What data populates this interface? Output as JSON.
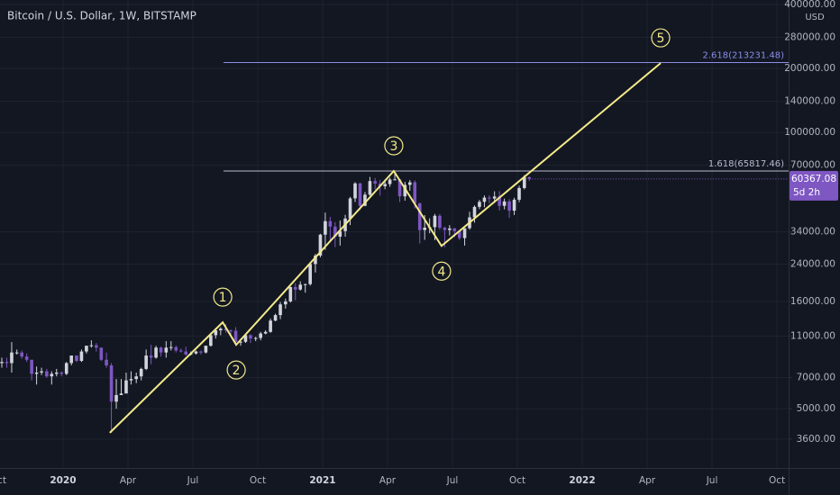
{
  "chart_data": {
    "type": "candlestick",
    "title": "Bitcoin / U.S. Dollar, 1W, BITSTAMP",
    "y_unit": "USD",
    "log_scale": true,
    "grid": true,
    "up_color": "#d1d4dc",
    "down_color": "#7e57c2",
    "xlim": [
      2019.757,
      2022.795
    ],
    "ylim": [
      2630,
      420000
    ],
    "xticks": [
      {
        "value": 2019.75,
        "label": "Oct"
      },
      2020,
      {
        "value": 2020.25,
        "label": "Apr"
      },
      {
        "value": 2020.5,
        "label": "Jul"
      },
      {
        "value": 2020.75,
        "label": "Oct"
      },
      2021,
      {
        "value": 2021.25,
        "label": "Apr"
      },
      {
        "value": 2021.5,
        "label": "Jul"
      },
      {
        "value": 2021.75,
        "label": "Oct"
      },
      2022,
      {
        "value": 2022.25,
        "label": "Apr"
      },
      {
        "value": 2022.5,
        "label": "Jul"
      },
      {
        "value": 2022.75,
        "label": "Oct"
      }
    ],
    "yticks": [
      {
        "value": 400000,
        "label": "400000.00"
      },
      {
        "value": 280000,
        "label": "280000.00"
      },
      {
        "value": 200000,
        "label": "200000.00"
      },
      {
        "value": 140000,
        "label": "140000.00"
      },
      {
        "value": 100000,
        "label": "100000.00"
      },
      {
        "value": 70000,
        "label": "70000.00"
      },
      {
        "value": 34000,
        "label": "34000.00"
      },
      {
        "value": 24000,
        "label": "24000.00"
      },
      {
        "value": 16000,
        "label": "16000.00"
      },
      {
        "value": 11000,
        "label": "11000.00"
      },
      {
        "value": 7000,
        "label": "7000.00"
      },
      {
        "value": 5000,
        "label": "5000.00"
      },
      {
        "value": 3600,
        "label": "3600.00"
      }
    ],
    "x": [
      2019.764,
      2019.783,
      2019.802,
      2019.822,
      2019.841,
      2019.86,
      2019.879,
      2019.898,
      2019.917,
      2019.937,
      2019.956,
      2019.975,
      2019.994,
      2020.013,
      2020.032,
      2020.052,
      2020.071,
      2020.09,
      2020.109,
      2020.128,
      2020.147,
      2020.167,
      2020.186,
      2020.205,
      2020.224,
      2020.243,
      2020.262,
      2020.282,
      2020.301,
      2020.32,
      2020.339,
      2020.358,
      2020.377,
      2020.397,
      2020.416,
      2020.435,
      2020.454,
      2020.473,
      2020.492,
      2020.512,
      2020.531,
      2020.55,
      2020.569,
      2020.588,
      2020.607,
      2020.627,
      2020.646,
      2020.665,
      2020.684,
      2020.703,
      2020.722,
      2020.742,
      2020.761,
      2020.78,
      2020.799,
      2020.818,
      2020.837,
      2020.857,
      2020.876,
      2020.895,
      2020.914,
      2020.933,
      2020.952,
      2020.972,
      2020.991,
      2021.01,
      2021.029,
      2021.048,
      2021.067,
      2021.087,
      2021.106,
      2021.125,
      2021.144,
      2021.163,
      2021.182,
      2021.202,
      2021.221,
      2021.24,
      2021.259,
      2021.278,
      2021.297,
      2021.317,
      2021.336,
      2021.355,
      2021.374,
      2021.393,
      2021.412,
      2021.432,
      2021.451,
      2021.47,
      2021.489,
      2021.508,
      2021.527,
      2021.547,
      2021.566,
      2021.585,
      2021.604,
      2021.623,
      2021.642,
      2021.662,
      2021.681,
      2021.7,
      2021.719,
      2021.738,
      2021.757,
      2021.777,
      2021.796
    ],
    "open": [
      8200,
      8300,
      8200,
      9200,
      9200,
      8800,
      8500,
      7300,
      7400,
      7500,
      7100,
      7300,
      7400,
      7300,
      8200,
      8900,
      8400,
      9300,
      9900,
      9950,
      9700,
      8500,
      8000,
      5400,
      5800,
      5900,
      6800,
      6900,
      7100,
      7700,
      8900,
      8700,
      9700,
      9200,
      9700,
      9750,
      9400,
      9300,
      9000,
      9100,
      9300,
      9200,
      9900,
      11100,
      11700,
      11900,
      11700,
      11650,
      10300,
      10330,
      11100,
      10700,
      10770,
      11300,
      11500,
      13000,
      13800,
      15500,
      16000,
      18700,
      18200,
      19200,
      19300,
      24000,
      26300,
      33000,
      38200,
      36000,
      32300,
      34300,
      39300,
      48900,
      57500,
      45100,
      50900,
      59000,
      57400,
      55800,
      57100,
      60000,
      60100,
      50000,
      56600,
      58200,
      46400,
      34700,
      35600,
      35800,
      40500,
      35600,
      34700,
      35300,
      34300,
      31800,
      35400,
      39800,
      44600,
      47100,
      49300,
      48800,
      49900,
      45100,
      47300,
      42800,
      48200,
      54700,
      61500
    ],
    "high": [
      8700,
      8700,
      10300,
      9500,
      9400,
      9100,
      8500,
      7900,
      7800,
      7700,
      7500,
      7700,
      7500,
      8300,
      8900,
      8900,
      9500,
      9900,
      10500,
      10200,
      9700,
      9200,
      8200,
      6900,
      6900,
      7400,
      7500,
      7400,
      7800,
      9500,
      10000,
      9900,
      9800,
      10400,
      10400,
      9900,
      9600,
      9800,
      9300,
      9400,
      9400,
      9900,
      11400,
      12000,
      12100,
      12500,
      11800,
      12100,
      10700,
      11200,
      11200,
      10900,
      11500,
      11700,
      13300,
      14000,
      15900,
      16500,
      18800,
      19500,
      19900,
      19400,
      24300,
      26800,
      33300,
      41900,
      40000,
      37800,
      38500,
      40900,
      49700,
      58300,
      58000,
      52400,
      61700,
      61000,
      59600,
      60000,
      61200,
      64900,
      60300,
      58500,
      59600,
      59500,
      46600,
      40800,
      39400,
      41300,
      41300,
      36000,
      36600,
      35500,
      34700,
      35400,
      42300,
      45300,
      48100,
      50500,
      50500,
      52800,
      52900,
      48800,
      48500,
      49200,
      56000,
      62900,
      62000
    ],
    "low": [
      7800,
      7800,
      7400,
      9000,
      8600,
      8300,
      6800,
      6500,
      7200,
      7000,
      6500,
      7100,
      7100,
      7200,
      8000,
      8300,
      8300,
      9100,
      9700,
      9300,
      8400,
      7800,
      3850,
      5000,
      5800,
      5900,
      6500,
      6600,
      6800,
      7600,
      8100,
      8600,
      8800,
      8700,
      9400,
      9200,
      9200,
      8900,
      8900,
      9000,
      9000,
      9100,
      9800,
      10700,
      11100,
      11400,
      11100,
      9900,
      9900,
      10200,
      10200,
      10400,
      10500,
      11200,
      11400,
      12900,
      13200,
      14800,
      15800,
      16200,
      18000,
      17600,
      19000,
      21900,
      25800,
      28000,
      30400,
      28800,
      29300,
      32300,
      36600,
      47000,
      43000,
      44900,
      50300,
      53800,
      50400,
      54000,
      55500,
      59400,
      47000,
      47700,
      53100,
      43800,
      30000,
      31200,
      33500,
      31100,
      34800,
      28800,
      32700,
      32100,
      31100,
      29300,
      34800,
      37600,
      43500,
      44400,
      46400,
      46600,
      42900,
      43400,
      39600,
      40800,
      46900,
      53900,
      59000
    ],
    "close": [
      8300,
      8200,
      9200,
      9200,
      8800,
      8500,
      7300,
      7400,
      7500,
      7100,
      7300,
      7400,
      7300,
      8200,
      8900,
      8400,
      9300,
      9900,
      9950,
      9700,
      8500,
      8000,
      5400,
      5800,
      5900,
      6800,
      6900,
      7100,
      7700,
      8900,
      8700,
      9700,
      9200,
      9700,
      9750,
      9400,
      9300,
      9000,
      9100,
      9300,
      9200,
      9900,
      11100,
      11700,
      11900,
      11700,
      11650,
      10300,
      10330,
      11100,
      10700,
      10770,
      11300,
      11500,
      13000,
      13800,
      15500,
      16000,
      18700,
      18200,
      19200,
      19300,
      24000,
      26300,
      33000,
      38200,
      36000,
      32300,
      34300,
      39300,
      48900,
      57500,
      45100,
      50900,
      59000,
      57400,
      55800,
      57100,
      60000,
      60100,
      50000,
      56600,
      58200,
      46400,
      34700,
      35600,
      35800,
      40500,
      35600,
      34700,
      35300,
      34300,
      31800,
      35400,
      39800,
      44600,
      47100,
      49300,
      48800,
      49900,
      45100,
      47300,
      42800,
      48200,
      54700,
      61500,
      60367.08
    ],
    "countdown": "5d 2h",
    "price_box_color": "#7e57c2",
    "wave": {
      "color": "#f3ea8a",
      "x": [
        2020.18,
        2020.615,
        2020.667,
        2021.274,
        2021.458,
        2022.302
      ],
      "y": [
        3850,
        12760,
        10000,
        65800,
        29200,
        212000
      ],
      "labels": [
        null,
        "1",
        "2",
        "3",
        "4",
        "5"
      ],
      "label_side": [
        null,
        "above",
        "below",
        "above",
        "below",
        "above"
      ]
    },
    "fib_start": 2020.618,
    "fib_levels": [
      {
        "value": 65817.46,
        "label": "1.618(65817.46)",
        "color": "#b8b9cc"
      },
      {
        "value": 213231.48,
        "label": "2.618(213231.48)",
        "color": "#8a8de8"
      }
    ]
  }
}
